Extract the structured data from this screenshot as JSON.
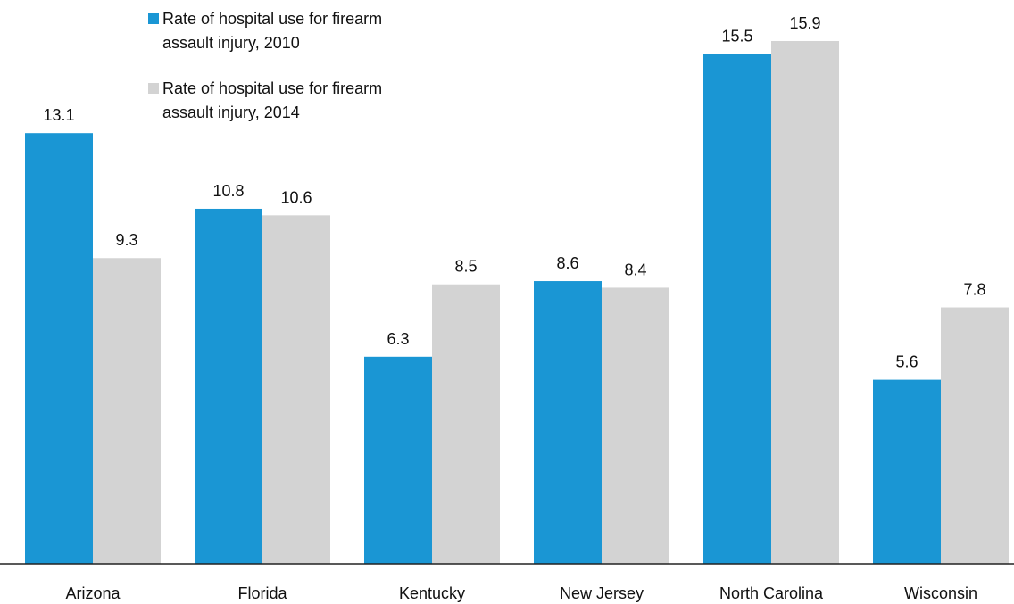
{
  "chart_data": {
    "type": "bar",
    "categories": [
      "Arizona",
      "Florida",
      "Kentucky",
      "New Jersey",
      "North Carolina",
      "Wisconsin"
    ],
    "series": [
      {
        "name": "Rate of hospital use for firearm assault injury, 2010",
        "color": "#1a96d4",
        "values": [
          13.1,
          10.8,
          6.3,
          8.6,
          15.5,
          5.6
        ]
      },
      {
        "name": "Rate of hospital use for firearm assault injury, 2014",
        "color": "#d3d3d3",
        "values": [
          9.3,
          10.6,
          8.5,
          8.4,
          15.9,
          7.8
        ]
      }
    ],
    "legend": "top-left"
  }
}
